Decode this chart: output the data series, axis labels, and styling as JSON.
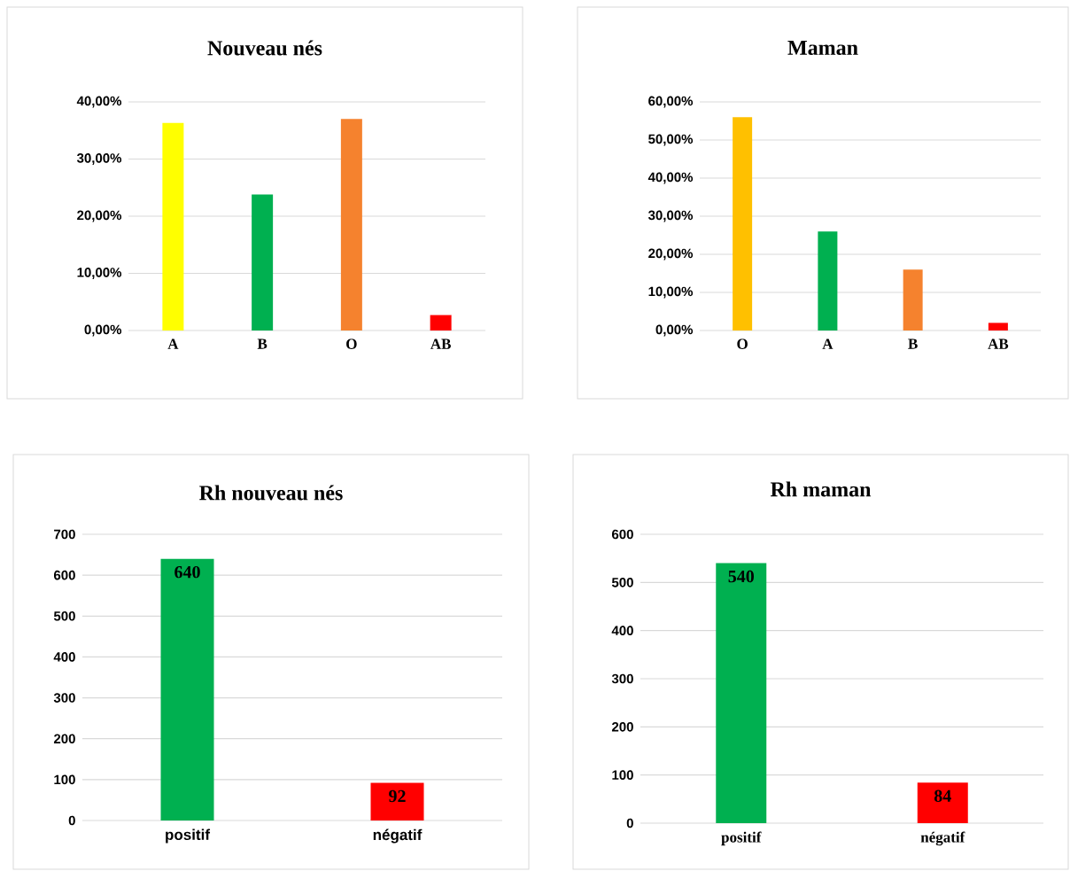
{
  "chart_data": [
    {
      "type": "bar",
      "title": "Nouveau nés",
      "categories": [
        "A",
        "B",
        "O",
        "AB"
      ],
      "values": [
        36.3,
        23.8,
        37.0,
        2.7
      ],
      "colors": [
        "#ffff00",
        "#00b050",
        "#f5822e",
        "#ff0000"
      ],
      "ylim": [
        0,
        40
      ],
      "yticks": [
        {
          "value": 0,
          "label": "0,00%"
        },
        {
          "value": 10,
          "label": "10,00%"
        },
        {
          "value": 20,
          "label": "20,00%"
        },
        {
          "value": 30,
          "label": "30,00%"
        },
        {
          "value": 40,
          "label": "40,00%"
        }
      ],
      "grid": "y"
    },
    {
      "type": "bar",
      "title": "Maman",
      "categories": [
        "O",
        "A",
        "B",
        "AB"
      ],
      "values": [
        56,
        26,
        16,
        2
      ],
      "colors": [
        "#ffc000",
        "#00b050",
        "#f5822e",
        "#ff0000"
      ],
      "ylim": [
        0,
        60
      ],
      "yticks": [
        {
          "value": 0,
          "label": "0,00%"
        },
        {
          "value": 10,
          "label": "10,00%"
        },
        {
          "value": 20,
          "label": "20,00%"
        },
        {
          "value": 30,
          "label": "30,00%"
        },
        {
          "value": 40,
          "label": "40,00%"
        },
        {
          "value": 50,
          "label": "50,00%"
        },
        {
          "value": 60,
          "label": "60,00%"
        }
      ],
      "grid": "y"
    },
    {
      "type": "bar",
      "title": "Rh nouveau nés",
      "categories": [
        "positif",
        "négatif"
      ],
      "values": [
        640,
        92
      ],
      "colors": [
        "#00b050",
        "#ff0000"
      ],
      "ylim": [
        0,
        700
      ],
      "yticks": [
        0,
        100,
        200,
        300,
        400,
        500,
        600,
        700
      ],
      "grid": "y",
      "data_labels": true
    },
    {
      "type": "bar",
      "title": "Rh maman",
      "categories": [
        "positif",
        "négatif"
      ],
      "values": [
        540,
        84
      ],
      "colors": [
        "#00b050",
        "#ff0000"
      ],
      "ylim": [
        0,
        600
      ],
      "yticks": [
        0,
        100,
        200,
        300,
        400,
        500,
        600
      ],
      "grid": "y",
      "data_labels": true
    }
  ]
}
